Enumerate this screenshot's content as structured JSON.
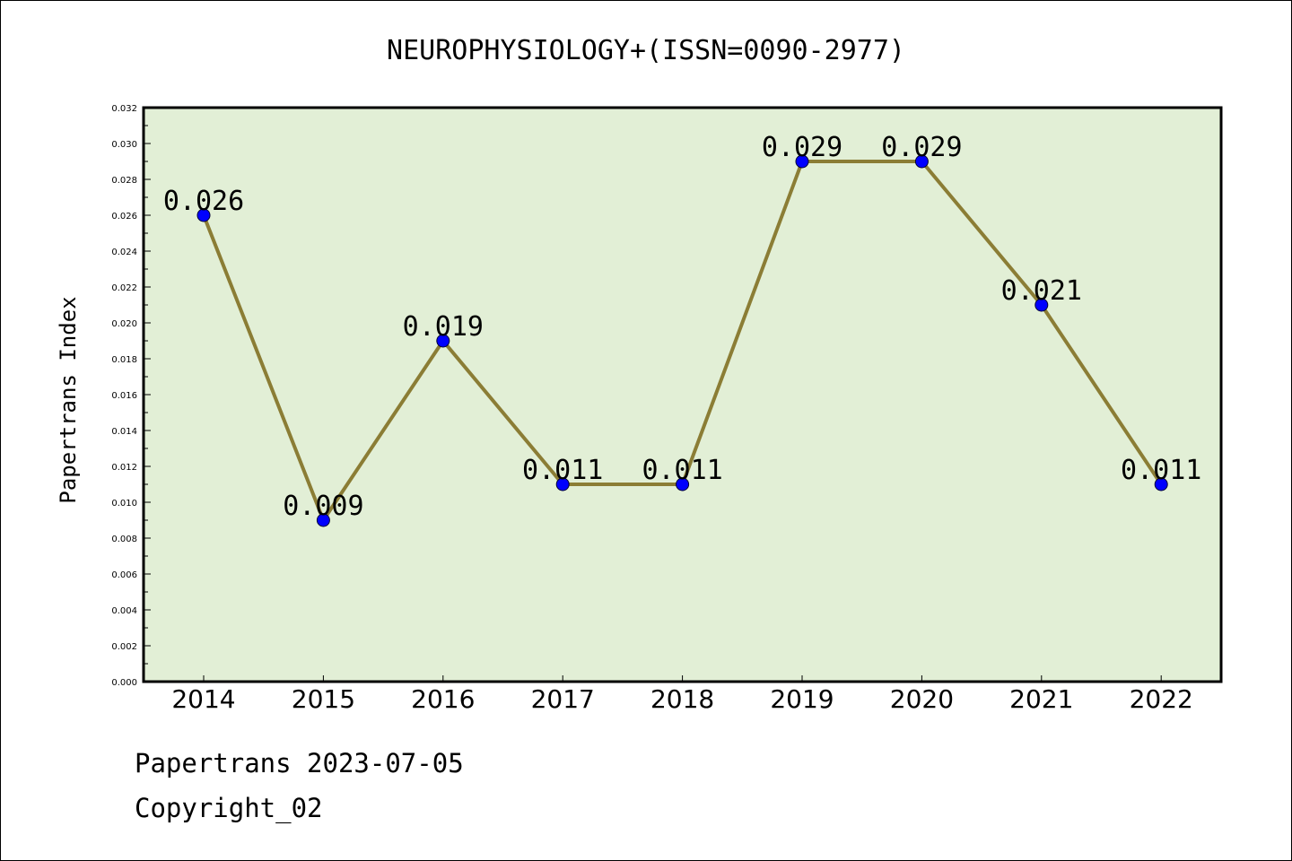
{
  "chart_data": {
    "type": "line",
    "title": "NEUROPHYSIOLOGY+(ISSN=0090-2977)",
    "xlabel": "",
    "ylabel": "Papertrans Index",
    "categories": [
      "2014",
      "2015",
      "2016",
      "2017",
      "2018",
      "2019",
      "2020",
      "2021",
      "2022"
    ],
    "values": [
      0.026,
      0.009,
      0.019,
      0.011,
      0.011,
      0.029,
      0.029,
      0.021,
      0.011
    ],
    "data_labels": [
      "0.026",
      "0.009",
      "0.019",
      "0.011",
      "0.011",
      "0.029",
      "0.029",
      "0.021",
      "0.011"
    ],
    "ylim": [
      0,
      0.032
    ],
    "yticks": [
      "0.000",
      "0.002",
      "0.004",
      "0.006",
      "0.008",
      "0.010",
      "0.012",
      "0.014",
      "0.016",
      "0.018",
      "0.020",
      "0.022",
      "0.024",
      "0.026",
      "0.028",
      "0.030",
      "0.032"
    ],
    "grid": false,
    "legend": "none",
    "colors": {
      "plot_background": "#e2efd6",
      "line": "#8b7d35",
      "marker": "#0000ff"
    }
  },
  "footer": {
    "line1": "Papertrans 2023-07-05",
    "line2": "Copyright_02"
  }
}
